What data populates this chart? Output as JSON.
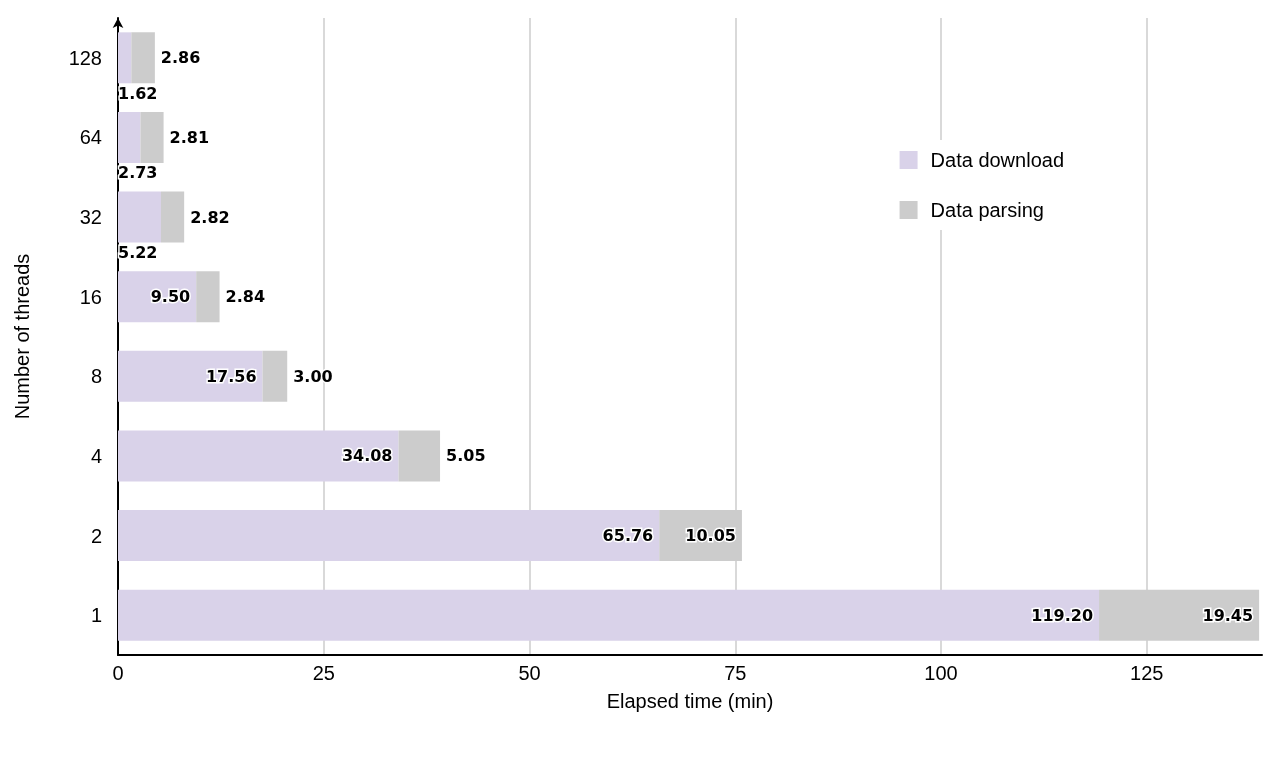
{
  "chart_data": {
    "type": "bar",
    "orientation": "horizontal",
    "stacked": true,
    "xlabel": "Elapsed time (min)",
    "ylabel": "Number of threads",
    "categories": [
      "128",
      "64",
      "32",
      "16",
      "8",
      "4",
      "2",
      "1"
    ],
    "series": [
      {
        "name": "Data download",
        "color": "#d9d2e9",
        "values": [
          1.62,
          2.73,
          5.22,
          9.5,
          17.56,
          34.08,
          65.76,
          119.2
        ],
        "value_labels": [
          "1.62",
          "2.73",
          "5.22",
          "9.50",
          "17.56",
          "34.08",
          "65.76",
          "119.20"
        ]
      },
      {
        "name": "Data parsing",
        "color": "#cccccc",
        "values": [
          2.86,
          2.81,
          2.82,
          2.84,
          3.0,
          5.05,
          10.05,
          19.45
        ],
        "value_labels": [
          "2.86",
          "2.81",
          "2.82",
          "2.84",
          "3.00",
          "5.05",
          "10.05",
          "19.45"
        ]
      }
    ],
    "xlim": [
      0,
      139
    ],
    "xticks": [
      0,
      25,
      50,
      75,
      100,
      125
    ],
    "grid": "x",
    "legend": "top right"
  }
}
